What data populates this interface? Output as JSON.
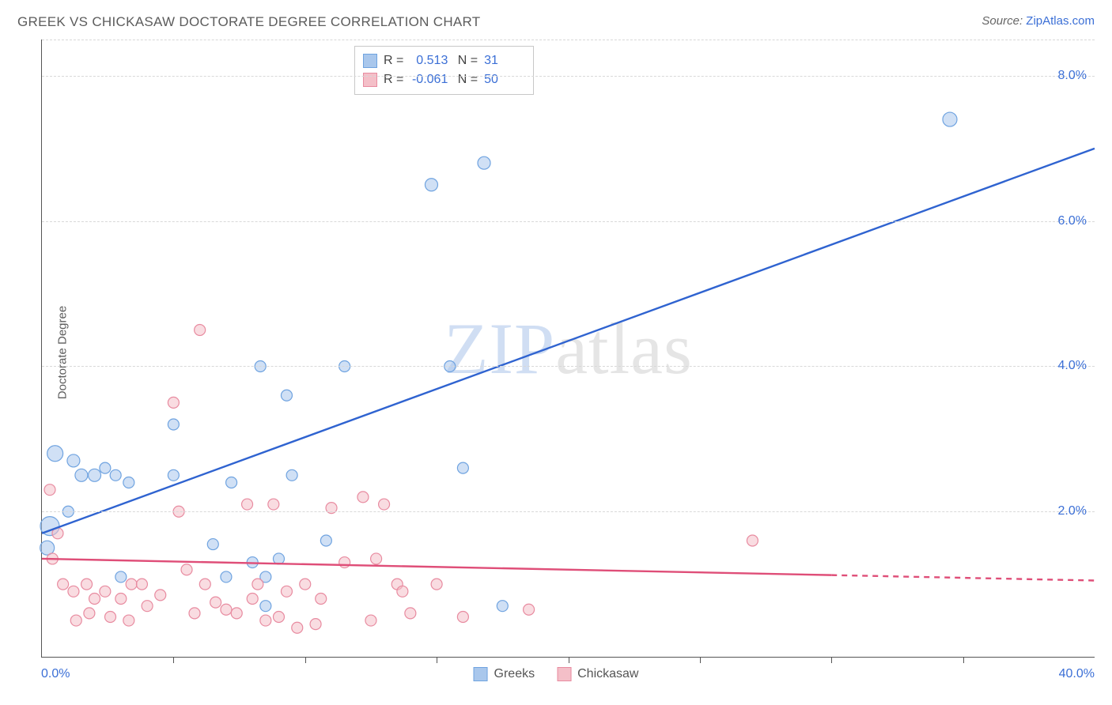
{
  "title": "GREEK VS CHICKASAW DOCTORATE DEGREE CORRELATION CHART",
  "source_prefix": "Source: ",
  "source_name": "ZipAtlas.com",
  "y_axis_label": "Doctorate Degree",
  "watermark_zip": "ZIP",
  "watermark_atlas": "atlas",
  "chart": {
    "type": "scatter",
    "xlim": [
      0,
      40
    ],
    "ylim": [
      0,
      8.5
    ],
    "x_ticks_labeled": [
      {
        "v": 0,
        "label": "0.0%"
      },
      {
        "v": 40,
        "label": "40.0%"
      }
    ],
    "x_ticks_minor": [
      5,
      10,
      15,
      20,
      25,
      30,
      35
    ],
    "y_ticks": [
      {
        "v": 2,
        "label": "2.0%"
      },
      {
        "v": 4,
        "label": "4.0%"
      },
      {
        "v": 6,
        "label": "6.0%"
      },
      {
        "v": 8,
        "label": "8.0%"
      }
    ],
    "y_gridlines": [
      2,
      4,
      6,
      8,
      8.5
    ],
    "background_color": "#ffffff",
    "grid_color": "#d8d8d8",
    "series": [
      {
        "name": "Greeks",
        "color_fill": "#a9c7ec",
        "color_stroke": "#6fa3e0",
        "fill_opacity": 0.55,
        "marker": "circle",
        "marker_r_base": 7,
        "trend": {
          "x0": 0,
          "y0": 1.7,
          "x1": 40,
          "y1": 7.0,
          "color": "#2f63d0",
          "width": 2.4,
          "dash_after_x": null
        },
        "points": [
          {
            "x": 0.3,
            "y": 1.8,
            "r": 12
          },
          {
            "x": 0.5,
            "y": 2.8,
            "r": 10
          },
          {
            "x": 1.2,
            "y": 2.7,
            "r": 8
          },
          {
            "x": 1.5,
            "y": 2.5,
            "r": 8
          },
          {
            "x": 2.0,
            "y": 2.5,
            "r": 8
          },
          {
            "x": 2.4,
            "y": 2.6,
            "r": 7
          },
          {
            "x": 1.0,
            "y": 2.0,
            "r": 7
          },
          {
            "x": 2.8,
            "y": 2.5,
            "r": 7
          },
          {
            "x": 3.3,
            "y": 2.4,
            "r": 7
          },
          {
            "x": 3.0,
            "y": 1.1,
            "r": 7
          },
          {
            "x": 5.0,
            "y": 2.5,
            "r": 7
          },
          {
            "x": 5.0,
            "y": 3.2,
            "r": 7
          },
          {
            "x": 6.5,
            "y": 1.55,
            "r": 7
          },
          {
            "x": 7.0,
            "y": 1.1,
            "r": 7
          },
          {
            "x": 7.2,
            "y": 2.4,
            "r": 7
          },
          {
            "x": 8.0,
            "y": 1.3,
            "r": 7
          },
          {
            "x": 8.3,
            "y": 4.0,
            "r": 7
          },
          {
            "x": 8.5,
            "y": 1.1,
            "r": 7
          },
          {
            "x": 9.0,
            "y": 1.35,
            "r": 7
          },
          {
            "x": 9.3,
            "y": 3.6,
            "r": 7
          },
          {
            "x": 9.5,
            "y": 2.5,
            "r": 7
          },
          {
            "x": 10.8,
            "y": 1.6,
            "r": 7
          },
          {
            "x": 11.5,
            "y": 4.0,
            "r": 7
          },
          {
            "x": 14.8,
            "y": 6.5,
            "r": 8
          },
          {
            "x": 16.0,
            "y": 2.6,
            "r": 7
          },
          {
            "x": 15.5,
            "y": 4.0,
            "r": 7
          },
          {
            "x": 16.8,
            "y": 6.8,
            "r": 8
          },
          {
            "x": 17.5,
            "y": 0.7,
            "r": 7
          },
          {
            "x": 8.5,
            "y": 0.7,
            "r": 7
          },
          {
            "x": 34.5,
            "y": 7.4,
            "r": 9
          },
          {
            "x": 0.2,
            "y": 1.5,
            "r": 9
          }
        ]
      },
      {
        "name": "Chickasaw",
        "color_fill": "#f4bfc8",
        "color_stroke": "#e88ba0",
        "fill_opacity": 0.55,
        "marker": "circle",
        "marker_r_base": 7,
        "trend": {
          "x0": 0,
          "y0": 1.35,
          "x1": 40,
          "y1": 1.05,
          "color": "#df4e78",
          "width": 2.4,
          "dash_after_x": 30
        },
        "points": [
          {
            "x": 0.3,
            "y": 2.3,
            "r": 7
          },
          {
            "x": 0.4,
            "y": 1.35,
            "r": 7
          },
          {
            "x": 0.6,
            "y": 1.7,
            "r": 7
          },
          {
            "x": 0.8,
            "y": 1.0,
            "r": 7
          },
          {
            "x": 1.2,
            "y": 0.9,
            "r": 7
          },
          {
            "x": 1.3,
            "y": 0.5,
            "r": 7
          },
          {
            "x": 1.7,
            "y": 1.0,
            "r": 7
          },
          {
            "x": 1.8,
            "y": 0.6,
            "r": 7
          },
          {
            "x": 2.0,
            "y": 0.8,
            "r": 7
          },
          {
            "x": 2.4,
            "y": 0.9,
            "r": 7
          },
          {
            "x": 2.6,
            "y": 0.55,
            "r": 7
          },
          {
            "x": 3.0,
            "y": 0.8,
            "r": 7
          },
          {
            "x": 3.3,
            "y": 0.5,
            "r": 7
          },
          {
            "x": 3.4,
            "y": 1.0,
            "r": 7
          },
          {
            "x": 3.8,
            "y": 1.0,
            "r": 7
          },
          {
            "x": 4.0,
            "y": 0.7,
            "r": 7
          },
          {
            "x": 4.5,
            "y": 0.85,
            "r": 7
          },
          {
            "x": 5.0,
            "y": 3.5,
            "r": 7
          },
          {
            "x": 5.2,
            "y": 2.0,
            "r": 7
          },
          {
            "x": 5.5,
            "y": 1.2,
            "r": 7
          },
          {
            "x": 5.8,
            "y": 0.6,
            "r": 7
          },
          {
            "x": 6.0,
            "y": 4.5,
            "r": 7
          },
          {
            "x": 6.2,
            "y": 1.0,
            "r": 7
          },
          {
            "x": 6.6,
            "y": 0.75,
            "r": 7
          },
          {
            "x": 7.0,
            "y": 0.65,
            "r": 7
          },
          {
            "x": 7.4,
            "y": 0.6,
            "r": 7
          },
          {
            "x": 7.8,
            "y": 2.1,
            "r": 7
          },
          {
            "x": 8.0,
            "y": 0.8,
            "r": 7
          },
          {
            "x": 8.2,
            "y": 1.0,
            "r": 7
          },
          {
            "x": 8.5,
            "y": 0.5,
            "r": 7
          },
          {
            "x": 8.8,
            "y": 2.1,
            "r": 7
          },
          {
            "x": 9.0,
            "y": 0.55,
            "r": 7
          },
          {
            "x": 9.3,
            "y": 0.9,
            "r": 7
          },
          {
            "x": 9.7,
            "y": 0.4,
            "r": 7
          },
          {
            "x": 10.0,
            "y": 1.0,
            "r": 7
          },
          {
            "x": 10.4,
            "y": 0.45,
            "r": 7
          },
          {
            "x": 10.6,
            "y": 0.8,
            "r": 7
          },
          {
            "x": 11.0,
            "y": 2.05,
            "r": 7
          },
          {
            "x": 11.5,
            "y": 1.3,
            "r": 7
          },
          {
            "x": 12.2,
            "y": 2.2,
            "r": 7
          },
          {
            "x": 12.5,
            "y": 0.5,
            "r": 7
          },
          {
            "x": 12.7,
            "y": 1.35,
            "r": 7
          },
          {
            "x": 13.0,
            "y": 2.1,
            "r": 7
          },
          {
            "x": 13.5,
            "y": 1.0,
            "r": 7
          },
          {
            "x": 13.7,
            "y": 0.9,
            "r": 7
          },
          {
            "x": 14.0,
            "y": 0.6,
            "r": 7
          },
          {
            "x": 15.0,
            "y": 1.0,
            "r": 7
          },
          {
            "x": 16.0,
            "y": 0.55,
            "r": 7
          },
          {
            "x": 18.5,
            "y": 0.65,
            "r": 7
          },
          {
            "x": 27.0,
            "y": 1.6,
            "r": 7
          }
        ]
      }
    ],
    "stats": [
      {
        "swatch_fill": "#a9c7ec",
        "swatch_stroke": "#6fa3e0",
        "R": "0.513",
        "N": "31"
      },
      {
        "swatch_fill": "#f4bfc8",
        "swatch_stroke": "#e88ba0",
        "R": "-0.061",
        "N": "50"
      }
    ],
    "legend": [
      {
        "label": "Greeks",
        "swatch_fill": "#a9c7ec",
        "swatch_stroke": "#6fa3e0"
      },
      {
        "label": "Chickasaw",
        "swatch_fill": "#f4bfc8",
        "swatch_stroke": "#e88ba0"
      }
    ]
  }
}
